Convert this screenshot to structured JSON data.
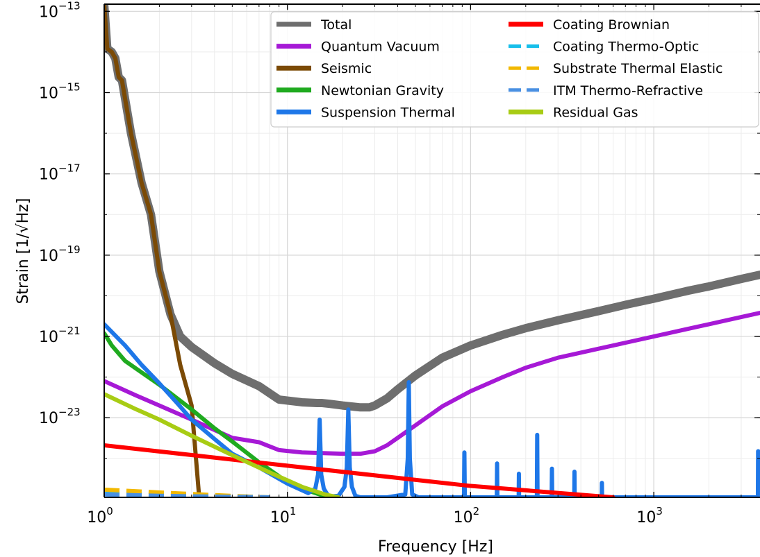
{
  "chart_data": {
    "type": "line",
    "title": "",
    "xlabel": "Frequency [Hz]",
    "ylabel": "Strain [1/√Hz]",
    "xscale": "log",
    "yscale": "log",
    "xlim": [
      1,
      3800
    ],
    "ylim": [
      1.1e-25,
      1.5e-13
    ],
    "grid": true,
    "legend_position": "top-right",
    "x_ticks": [
      {
        "value": 1,
        "mantissa": "10",
        "exp": "0"
      },
      {
        "value": 10,
        "mantissa": "10",
        "exp": "1"
      },
      {
        "value": 100,
        "mantissa": "10",
        "exp": "2"
      },
      {
        "value": 1000,
        "mantissa": "10",
        "exp": "3"
      }
    ],
    "y_ticks": [
      {
        "value": 1e-23,
        "mantissa": "10",
        "exp": "−23"
      },
      {
        "value": 1e-21,
        "mantissa": "10",
        "exp": "−21"
      },
      {
        "value": 1e-19,
        "mantissa": "10",
        "exp": "−19"
      },
      {
        "value": 1e-17,
        "mantissa": "10",
        "exp": "−17"
      },
      {
        "value": 1e-15,
        "mantissa": "10",
        "exp": "−15"
      },
      {
        "value": 1e-13,
        "mantissa": "10",
        "exp": "−13"
      }
    ],
    "series": [
      {
        "name": "Total",
        "color": "#6e6e6e",
        "dash": false,
        "width": 12,
        "x": [
          1.0,
          1.04,
          1.1,
          1.15,
          1.2,
          1.25,
          1.4,
          1.6,
          1.8,
          2.0,
          2.3,
          2.6,
          3.0,
          4.0,
          5.0,
          7.0,
          9.0,
          12,
          14.5,
          15.5,
          17,
          20,
          25,
          28,
          30,
          35,
          40,
          50,
          70,
          100,
          150,
          200,
          300,
          500,
          700,
          1000,
          1500,
          2000,
          3000,
          3800
        ],
        "y": [
          1.5e-13,
          1.2e-14,
          1e-14,
          7e-15,
          2.4e-15,
          2e-15,
          1e-16,
          6e-18,
          1e-18,
          4e-20,
          3.5e-21,
          1e-21,
          5.5e-22,
          2.2e-22,
          1.2e-22,
          6e-23,
          2.8e-23,
          2.4e-23,
          2.3e-23,
          2.3e-23,
          2.2e-23,
          2e-23,
          1.8e-23,
          1.8e-23,
          2e-23,
          3e-23,
          5e-23,
          1.1e-22,
          3e-22,
          6e-22,
          1.1e-21,
          1.6e-21,
          2.5e-21,
          4.2e-21,
          6e-21,
          8.5e-21,
          1.3e-20,
          1.7e-20,
          2.6e-20,
          3.3e-20
        ]
      },
      {
        "name": "Quantum Vacuum",
        "color": "#a619d6",
        "dash": false,
        "width": 6,
        "x": [
          1.0,
          1.5,
          2.0,
          3.0,
          4.0,
          5.0,
          7.0,
          9.0,
          12,
          20,
          25,
          30,
          35,
          40,
          50,
          70,
          100,
          150,
          200,
          300,
          500,
          700,
          1000,
          1500,
          2000,
          3000,
          3800
        ],
        "y": [
          8e-23,
          3.5e-23,
          2e-23,
          9e-24,
          5e-24,
          3.2e-24,
          2.5e-24,
          1.6e-24,
          1.4e-24,
          1.3e-24,
          1.3e-24,
          1.5e-24,
          2.1e-24,
          3.2e-24,
          6.5e-24,
          1.9e-23,
          4.5e-23,
          1e-22,
          1.7e-22,
          3e-22,
          5e-22,
          7e-22,
          1e-21,
          1.5e-21,
          2e-21,
          3e-21,
          3.8e-21
        ]
      },
      {
        "name": "Seismic",
        "color": "#7b4a05",
        "dash": false,
        "width": 6,
        "x": [
          1.0,
          1.04,
          1.1,
          1.15,
          1.2,
          1.25,
          1.4,
          1.6,
          1.8,
          2.0,
          2.3,
          2.6,
          3.0,
          3.3
        ],
        "y": [
          1.5e-13,
          1.2e-14,
          1e-14,
          7e-15,
          2.4e-15,
          2e-15,
          1e-16,
          6e-18,
          1e-18,
          4e-20,
          3.5e-21,
          2e-22,
          2e-23,
          1.1e-25
        ]
      },
      {
        "name": "Newtonian Gravity",
        "color": "#1faa1f",
        "dash": false,
        "width": 6,
        "x": [
          1.0,
          1.1,
          1.3,
          1.6,
          2.0,
          2.5,
          3.0,
          4.0,
          5.0,
          7.0,
          10,
          12,
          15,
          17
        ],
        "y": [
          1.2e-21,
          6e-22,
          2.5e-22,
          1.3e-22,
          6.5e-23,
          3e-23,
          1.6e-23,
          5.5e-24,
          2.6e-24,
          8e-25,
          2.6e-25,
          1.8e-25,
          1.3e-25,
          1.1e-25
        ]
      },
      {
        "name": "Suspension Thermal",
        "color": "#1e77e8",
        "dash": false,
        "width": 6,
        "x": [
          1.0,
          1.3,
          1.6,
          2.0,
          2.5,
          3.0,
          4.0,
          5.0,
          7.0,
          10,
          13,
          14.2,
          14.7,
          15.0,
          15.3,
          15.8,
          16.8,
          19.0,
          20.5,
          21.1,
          21.5,
          21.9,
          22.5,
          23.5,
          25,
          35,
          44.0,
          45.4,
          46.0,
          46.6,
          48.0,
          52,
          88,
          92,
          92.5,
          93,
          98,
          135,
          139,
          139.5,
          140,
          145,
          178,
          183,
          183.5,
          184,
          190,
          222,
          230,
          231,
          232,
          240,
          268,
          277,
          278,
          279,
          288,
          355,
          368,
          369,
          370,
          382,
          505,
          520,
          521,
          522,
          538,
          3600,
          3700,
          3710,
          3720
        ],
        "y": [
          2e-21,
          6e-22,
          2e-22,
          7e-23,
          2.3e-23,
          9e-24,
          3e-24,
          1.3e-24,
          6e-25,
          2.4e-25,
          1.4e-25,
          1.8e-25,
          4e-25,
          9e-24,
          4e-25,
          1.8e-25,
          1.15e-25,
          1.2e-25,
          2e-25,
          6e-25,
          1.6e-23,
          6e-25,
          2e-25,
          1.2e-25,
          1.1e-25,
          1.1e-25,
          1.3e-25,
          1e-24,
          7.5e-23,
          1e-24,
          1.3e-25,
          1.1e-25,
          1.1e-25,
          1.1e-25,
          1.4e-24,
          1.1e-25,
          1.1e-25,
          1.1e-25,
          1.1e-25,
          7.5e-25,
          1.1e-25,
          1.1e-25,
          1.1e-25,
          1.1e-25,
          4.2e-25,
          1.1e-25,
          1.1e-25,
          1.1e-25,
          1.1e-25,
          3.8e-24,
          1.1e-25,
          1.1e-25,
          1.1e-25,
          1.1e-25,
          5.6e-25,
          1.1e-25,
          1.1e-25,
          1.1e-25,
          1.1e-25,
          4.7e-25,
          1.1e-25,
          1.1e-25,
          1.1e-25,
          1.1e-25,
          2.5e-25,
          1.1e-25,
          1.1e-25,
          1.1e-25,
          1.1e-25,
          1.5e-24,
          1.5e-24
        ]
      },
      {
        "name": "Coating Brownian",
        "color": "#ff0000",
        "dash": false,
        "width": 6,
        "x": [
          1.0,
          10,
          100,
          600
        ],
        "y": [
          2.1e-24,
          6.6e-25,
          2.1e-25,
          1.1e-25
        ]
      },
      {
        "name": "Coating Thermo-Optic",
        "color": "#17bfea",
        "dash": true,
        "width": 6,
        "x": [
          1.0,
          2.0,
          4.0,
          6.0,
          8.0
        ],
        "y": [
          1.4e-25,
          1.3e-25,
          1.2e-25,
          1.15e-25,
          1.1e-25
        ]
      },
      {
        "name": "Substrate Thermal Elastic",
        "color": "#f2b800",
        "dash": true,
        "width": 6,
        "x": [
          1.0,
          2.0,
          4.0,
          6.0,
          8.0
        ],
        "y": [
          1.7e-25,
          1.45e-25,
          1.25e-25,
          1.15e-25,
          1.1e-25
        ]
      },
      {
        "name": "ITM Thermo-Refractive",
        "color": "#4a90e2",
        "dash": true,
        "width": 6,
        "x": [
          1.0,
          2.0,
          4.0,
          6.0,
          8.0
        ],
        "y": [
          1.3e-25,
          1.2e-25,
          1.15e-25,
          1.12e-25,
          1.1e-25
        ]
      },
      {
        "name": "Residual Gas",
        "color": "#a8cc14",
        "dash": false,
        "width": 6,
        "x": [
          1.0,
          1.5,
          2.0,
          3.0,
          5.0,
          8.0,
          12,
          16,
          19
        ],
        "y": [
          3.8e-23,
          1.6e-23,
          9e-24,
          3.6e-24,
          1.2e-24,
          4.5e-25,
          2e-25,
          1.3e-25,
          1.1e-25
        ]
      }
    ]
  }
}
